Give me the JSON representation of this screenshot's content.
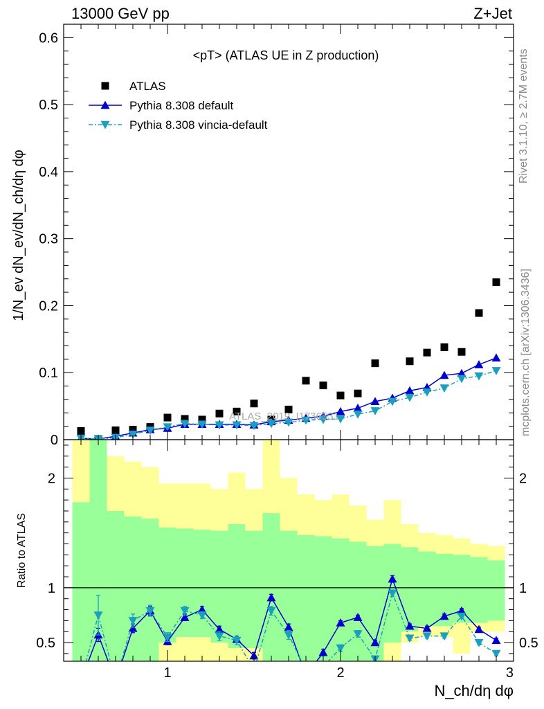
{
  "header": {
    "left": "13000 GeV pp",
    "right": "Z+Jet"
  },
  "side_labels": {
    "rivet": "Rivet 3.1.10, ≥ 2.7M events",
    "mcplots": "mcplots.cern.ch [arXiv:1306.3436]"
  },
  "watermark": "ATLAS_2019_I1736531",
  "chart_data": [
    {
      "type": "scatter",
      "panel": "main",
      "title": "<pT> (ATLAS UE in Z production)",
      "ylabel": "1/N_ev dN_ev/dN_ch/dη dφ",
      "xlim": [
        0.4,
        3.0
      ],
      "ylim": [
        0,
        0.62
      ],
      "yticks": [
        "0",
        "0.1",
        "0.2",
        "0.3",
        "0.4",
        "0.5",
        "0.6"
      ],
      "legend_position": "top-left",
      "series": [
        {
          "name": "ATLAS",
          "marker": "square",
          "color": "#000000",
          "x": [
            0.5,
            0.6,
            0.7,
            0.8,
            0.9,
            1.0,
            1.1,
            1.2,
            1.3,
            1.4,
            1.5,
            1.6,
            1.7,
            1.8,
            1.9,
            2.0,
            2.1,
            2.2,
            2.4,
            2.5,
            2.6,
            2.7,
            2.8,
            2.9
          ],
          "y": [
            0.013,
            0.001,
            0.014,
            0.015,
            0.019,
            0.033,
            0.031,
            0.03,
            0.039,
            0.042,
            0.054,
            0.03,
            0.045,
            0.088,
            0.081,
            0.066,
            0.069,
            0.114,
            0.117,
            0.13,
            0.138,
            0.131,
            0.189,
            0.235
          ]
        },
        {
          "name": "Pythia 8.308 default",
          "marker": "triangle-up",
          "color": "#0000cc",
          "x": [
            0.5,
            0.6,
            0.7,
            0.8,
            0.9,
            1.0,
            1.1,
            1.2,
            1.3,
            1.4,
            1.5,
            1.6,
            1.7,
            1.8,
            1.9,
            2.0,
            2.1,
            2.2,
            2.3,
            2.4,
            2.5,
            2.6,
            2.7,
            2.8,
            2.9
          ],
          "y": [
            0.002,
            0.001,
            0.005,
            0.01,
            0.015,
            0.017,
            0.023,
            0.023,
            0.023,
            0.023,
            0.022,
            0.027,
            0.029,
            0.032,
            0.035,
            0.042,
            0.047,
            0.057,
            0.062,
            0.073,
            0.078,
            0.096,
            0.099,
            0.112,
            0.122
          ]
        },
        {
          "name": "Pythia 8.308 vincia-default",
          "marker": "triangle-down",
          "color": "#1a9fbf",
          "x": [
            0.5,
            0.6,
            0.7,
            0.8,
            0.9,
            1.0,
            1.1,
            1.2,
            1.3,
            1.4,
            1.5,
            1.6,
            1.7,
            1.8,
            1.9,
            2.0,
            2.1,
            2.2,
            2.3,
            2.4,
            2.5,
            2.6,
            2.7,
            2.8,
            2.9
          ],
          "y": [
            0.002,
            0.001,
            0.003,
            0.008,
            0.014,
            0.019,
            0.024,
            0.023,
            0.022,
            0.022,
            0.021,
            0.024,
            0.026,
            0.029,
            0.03,
            0.031,
            0.038,
            0.043,
            0.057,
            0.063,
            0.071,
            0.077,
            0.091,
            0.095,
            0.103
          ]
        }
      ]
    },
    {
      "type": "line",
      "panel": "ratio",
      "ylabel": "Ratio to ATLAS",
      "xlabel": "N_ch/dη dφ",
      "xlim": [
        0.4,
        3.0
      ],
      "ylim": [
        0.33,
        2.35
      ],
      "xticks": [
        "1",
        "2",
        "3"
      ],
      "yticks": [
        "0.5",
        "1",
        "2"
      ],
      "reference_line": 1,
      "bands": {
        "bin_edges": [
          0.45,
          0.55,
          0.65,
          0.75,
          0.85,
          0.95,
          1.05,
          1.15,
          1.25,
          1.35,
          1.45,
          1.55,
          1.65,
          1.75,
          1.85,
          1.95,
          2.05,
          2.15,
          2.25,
          2.35,
          2.45,
          2.55,
          2.65,
          2.75,
          2.85,
          2.95
        ],
        "inner": [
          [
            0.33,
            1.78
          ],
          [
            0.33,
            2.35
          ],
          [
            0.33,
            1.7
          ],
          [
            0.33,
            1.65
          ],
          [
            0.33,
            1.63
          ],
          [
            0.5,
            1.55
          ],
          [
            0.55,
            1.54
          ],
          [
            0.55,
            1.53
          ],
          [
            0.5,
            1.52
          ],
          [
            0.45,
            1.58
          ],
          [
            0.45,
            1.52
          ],
          [
            0.33,
            1.68
          ],
          [
            0.33,
            1.52
          ],
          [
            0.33,
            1.48
          ],
          [
            0.33,
            1.47
          ],
          [
            0.33,
            1.45
          ],
          [
            0.33,
            1.42
          ],
          [
            0.33,
            1.38
          ],
          [
            0.5,
            1.4
          ],
          [
            0.6,
            1.37
          ],
          [
            0.65,
            1.33
          ],
          [
            0.65,
            1.31
          ],
          [
            0.68,
            1.3
          ],
          [
            0.68,
            1.28
          ],
          [
            0.7,
            1.25
          ]
        ],
        "outer": [
          [
            0.33,
            2.35
          ],
          [
            0.33,
            2.35
          ],
          [
            0.33,
            2.2
          ],
          [
            0.33,
            2.15
          ],
          [
            0.33,
            2.1
          ],
          [
            0.33,
            1.95
          ],
          [
            0.33,
            1.95
          ],
          [
            0.33,
            1.95
          ],
          [
            0.33,
            1.9
          ],
          [
            0.33,
            2.05
          ],
          [
            0.33,
            1.9
          ],
          [
            0.33,
            2.35
          ],
          [
            0.33,
            2.0
          ],
          [
            0.33,
            1.85
          ],
          [
            0.33,
            1.8
          ],
          [
            0.33,
            1.85
          ],
          [
            0.33,
            1.75
          ],
          [
            0.33,
            1.62
          ],
          [
            0.33,
            1.8
          ],
          [
            0.5,
            1.58
          ],
          [
            0.55,
            1.5
          ],
          [
            0.55,
            1.48
          ],
          [
            0.4,
            1.45
          ],
          [
            0.6,
            1.4
          ],
          [
            0.6,
            1.38
          ]
        ]
      },
      "series": [
        {
          "name": "Pythia 8.308 default",
          "marker": "triangle-up",
          "color": "#0000cc",
          "x": [
            0.5,
            0.6,
            0.7,
            0.8,
            0.9,
            1.0,
            1.1,
            1.2,
            1.3,
            1.4,
            1.5,
            1.6,
            1.7,
            1.8,
            1.9,
            2.0,
            2.1,
            2.2,
            2.3,
            2.4,
            2.5,
            2.6,
            2.7,
            2.8,
            2.9
          ],
          "y": [
            0.15,
            0.57,
            0.15,
            0.63,
            0.79,
            0.51,
            0.73,
            0.8,
            0.62,
            0.53,
            0.38,
            0.91,
            0.64,
            0.2,
            0.41,
            0.68,
            0.73,
            0.5,
            1.08,
            0.65,
            0.63,
            0.74,
            0.79,
            0.62,
            0.52
          ],
          "err": [
            0.05,
            0.06,
            0.05,
            0.04,
            0.04,
            0.03,
            0.03,
            0.03,
            0.03,
            0.03,
            0.03,
            0.03,
            0.03,
            0.03,
            0.03,
            0.02,
            0.02,
            0.02,
            0.03,
            0.02,
            0.02,
            0.02,
            0.02,
            0.02,
            0.02
          ]
        },
        {
          "name": "Pythia 8.308 vincia-default",
          "marker": "triangle-down",
          "color": "#1a9fbf",
          "x": [
            0.5,
            0.6,
            0.7,
            0.8,
            0.9,
            1.0,
            1.1,
            1.2,
            1.3,
            1.4,
            1.5,
            1.6,
            1.7,
            1.8,
            1.9,
            2.0,
            2.1,
            2.2,
            2.3,
            2.4,
            2.5,
            2.6,
            2.7,
            2.8,
            2.9
          ],
          "y": [
            0.15,
            0.75,
            0.15,
            0.7,
            0.79,
            0.55,
            0.79,
            0.75,
            0.56,
            0.52,
            0.25,
            0.79,
            0.57,
            0.25,
            0.28,
            0.45,
            0.58,
            0.35,
            0.95,
            0.54,
            0.56,
            0.56,
            0.74,
            0.5,
            0.4
          ],
          "err": [
            0.05,
            0.18,
            0.05,
            0.06,
            0.05,
            0.04,
            0.04,
            0.03,
            0.04,
            0.04,
            0.03,
            0.04,
            0.04,
            0.03,
            0.03,
            0.03,
            0.03,
            0.02,
            0.03,
            0.02,
            0.02,
            0.02,
            0.02,
            0.02,
            0.02
          ]
        }
      ]
    }
  ]
}
